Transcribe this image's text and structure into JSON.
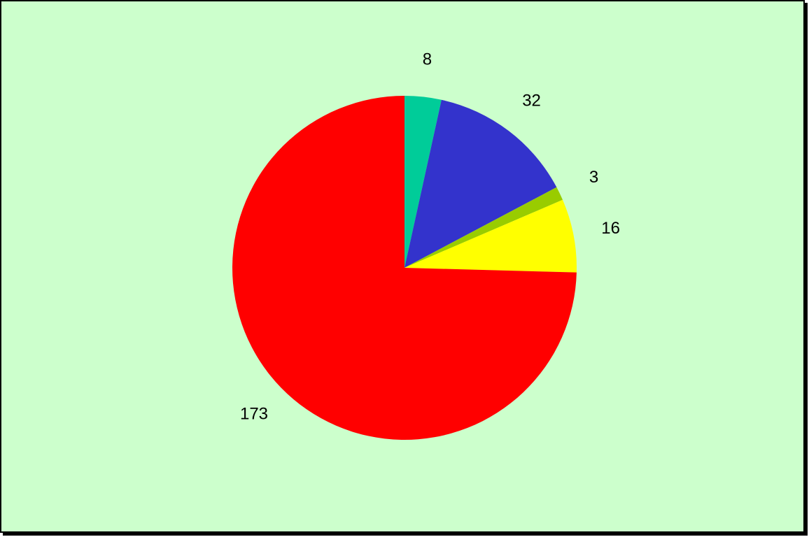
{
  "chart_data": {
    "type": "pie",
    "title": "",
    "legend": "none",
    "start_angle_deg": 0,
    "direction": "clockwise",
    "slices": [
      {
        "value": 8,
        "label": "8",
        "color": "#00cc99"
      },
      {
        "value": 32,
        "label": "32",
        "color": "#3333cc"
      },
      {
        "value": 3,
        "label": "3",
        "color": "#99cc00"
      },
      {
        "value": 16,
        "label": "16",
        "color": "#ffff00"
      },
      {
        "value": 173,
        "label": "173",
        "color": "#ff0000"
      }
    ],
    "background_color": "#ccffcc"
  }
}
